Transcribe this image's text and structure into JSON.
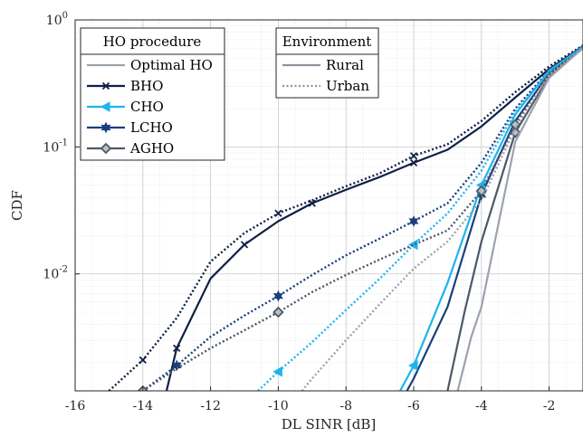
{
  "chart_data": {
    "type": "line",
    "xlabel": "DL SINR [dB]",
    "ylabel": "CDF",
    "xscale": "linear",
    "yscale": "log",
    "xlim": [
      -16,
      -1
    ],
    "ylim": [
      0.0012,
      1
    ],
    "x_ticks": [
      -16,
      -14,
      -12,
      -10,
      -8,
      -6,
      -4,
      -2
    ],
    "x_tick_labels": [
      "-16",
      "-14",
      "-12",
      "-10",
      "-8",
      "-6",
      "-4",
      "-2"
    ],
    "y_ticks": [
      {
        "value": 0.01,
        "base": "10",
        "exp": "-2"
      },
      {
        "value": 0.1,
        "base": "10",
        "exp": "-1"
      },
      {
        "value": 1,
        "base": "10",
        "exp": "0"
      }
    ],
    "grid": true,
    "minor_grid": true,
    "legends": [
      {
        "title": "HO procedure",
        "placement": "top-left",
        "entries": [
          {
            "label": "Optimal HO",
            "color": "#9aa3ad",
            "marker": "none"
          },
          {
            "label": "BHO",
            "color": "#0f1f45",
            "marker": "x"
          },
          {
            "label": "CHO",
            "color": "#1cb4ef",
            "marker": "triangle-left"
          },
          {
            "label": "LCHO",
            "color": "#1a3f7a",
            "marker": "hexagram"
          },
          {
            "label": "AGHO",
            "color": "#4d5866",
            "marker": "diamond"
          }
        ]
      },
      {
        "title": "Environment",
        "placement": "top-center",
        "entries": [
          {
            "label": "Rural",
            "color": "#8c949d",
            "style": "solid"
          },
          {
            "label": "Urban",
            "color": "#8c949d",
            "style": "dotted"
          }
        ]
      }
    ],
    "series": [
      {
        "procedure": "BHO",
        "environment": "Urban",
        "color": "#0f1f45",
        "style": "dotted",
        "marker": "x",
        "points": [
          [
            -15,
            0.0012
          ],
          [
            -14,
            0.0021
          ],
          [
            -13,
            0.0045
          ],
          [
            -12,
            0.0125
          ],
          [
            -11,
            0.021
          ],
          [
            -10,
            0.03
          ],
          [
            -9,
            0.038
          ],
          [
            -8,
            0.049
          ],
          [
            -7,
            0.062
          ],
          [
            -6,
            0.085
          ],
          [
            -5,
            0.105
          ],
          [
            -4,
            0.16
          ],
          [
            -3,
            0.27
          ],
          [
            -2,
            0.43
          ],
          [
            -1,
            0.63
          ]
        ],
        "marker_x": [
          -14,
          -10,
          -6
        ]
      },
      {
        "procedure": "BHO",
        "environment": "Rural",
        "color": "#0f1f45",
        "style": "solid",
        "marker": "x",
        "points": [
          [
            -13.3,
            0.0012
          ],
          [
            -13,
            0.0026
          ],
          [
            -12,
            0.0092
          ],
          [
            -11,
            0.017
          ],
          [
            -10,
            0.026
          ],
          [
            -9,
            0.036
          ],
          [
            -8,
            0.046
          ],
          [
            -7,
            0.058
          ],
          [
            -6,
            0.075
          ],
          [
            -5,
            0.095
          ],
          [
            -4,
            0.145
          ],
          [
            -3,
            0.245
          ],
          [
            -2,
            0.41
          ],
          [
            -1,
            0.62
          ]
        ],
        "marker_x": [
          -13,
          -11,
          -9,
          -6
        ]
      },
      {
        "procedure": "LCHO",
        "environment": "Urban",
        "color": "#1a3f7a",
        "style": "dotted",
        "marker": "hexagram",
        "points": [
          [
            -14,
            0.0012
          ],
          [
            -13,
            0.0019
          ],
          [
            -12,
            0.0032
          ],
          [
            -11,
            0.0047
          ],
          [
            -10,
            0.0067
          ],
          [
            -9,
            0.0098
          ],
          [
            -8,
            0.014
          ],
          [
            -7,
            0.019
          ],
          [
            -6,
            0.026
          ],
          [
            -5,
            0.036
          ],
          [
            -4,
            0.075
          ],
          [
            -3,
            0.2
          ],
          [
            -2,
            0.4
          ],
          [
            -1,
            0.62
          ]
        ],
        "marker_x": [
          -13,
          -10,
          -6
        ]
      },
      {
        "procedure": "LCHO",
        "environment": "Rural",
        "color": "#1a3f7a",
        "style": "solid",
        "marker": "hexagram",
        "points": [
          [
            -6.2,
            0.0012
          ],
          [
            -6,
            0.0015
          ],
          [
            -5,
            0.0055
          ],
          [
            -4,
            0.042
          ],
          [
            -3,
            0.16
          ],
          [
            -2,
            0.38
          ],
          [
            -1,
            0.6
          ]
        ],
        "marker_x": [
          -4
        ]
      },
      {
        "procedure": "CHO",
        "environment": "Urban",
        "color": "#1cb4ef",
        "style": "dotted",
        "marker": "triangle-left",
        "points": [
          [
            -10.6,
            0.0012
          ],
          [
            -10,
            0.0017
          ],
          [
            -9,
            0.0029
          ],
          [
            -8,
            0.0052
          ],
          [
            -7,
            0.0092
          ],
          [
            -6,
            0.017
          ],
          [
            -5,
            0.03
          ],
          [
            -4,
            0.065
          ],
          [
            -3,
            0.19
          ],
          [
            -2,
            0.39
          ],
          [
            -1,
            0.62
          ]
        ],
        "marker_x": [
          -10,
          -6
        ]
      },
      {
        "procedure": "CHO",
        "environment": "Rural",
        "color": "#1cb4ef",
        "style": "solid",
        "marker": "triangle-left",
        "points": [
          [
            -6.4,
            0.0012
          ],
          [
            -6,
            0.0019
          ],
          [
            -5,
            0.0085
          ],
          [
            -4,
            0.05
          ],
          [
            -3,
            0.18
          ],
          [
            -2,
            0.4
          ],
          [
            -1,
            0.61
          ]
        ],
        "marker_x": [
          -6,
          -4
        ]
      },
      {
        "procedure": "AGHO",
        "environment": "Urban",
        "color": "#4d5866",
        "style": "dotted",
        "marker": "diamond",
        "points": [
          [
            -14,
            0.0012
          ],
          [
            -13,
            0.0018
          ],
          [
            -12,
            0.0026
          ],
          [
            -11,
            0.0036
          ],
          [
            -10,
            0.005
          ],
          [
            -9,
            0.0072
          ],
          [
            -8,
            0.0098
          ],
          [
            -7,
            0.013
          ],
          [
            -6,
            0.017
          ],
          [
            -5,
            0.022
          ],
          [
            -4,
            0.045
          ],
          [
            -3,
            0.15
          ],
          [
            -2,
            0.38
          ],
          [
            -1,
            0.6
          ]
        ],
        "marker_x": [
          -14,
          -10,
          -4,
          -3
        ]
      },
      {
        "procedure": "AGHO",
        "environment": "Rural",
        "color": "#4d5866",
        "style": "solid",
        "marker": "diamond",
        "points": [
          [
            -5,
            0.0012
          ],
          [
            -4.5,
            0.005
          ],
          [
            -4,
            0.018
          ],
          [
            -3,
            0.13
          ],
          [
            -2,
            0.36
          ],
          [
            -1,
            0.6
          ]
        ],
        "marker_x": [
          -3
        ]
      },
      {
        "procedure": "Optimal HO",
        "environment": "Urban",
        "color": "#9aa3ad",
        "style": "dotted",
        "marker": "none",
        "points": [
          [
            -9.3,
            0.0012
          ],
          [
            -9,
            0.0015
          ],
          [
            -8,
            0.003
          ],
          [
            -7,
            0.0058
          ],
          [
            -6,
            0.011
          ],
          [
            -5,
            0.018
          ],
          [
            -4,
            0.038
          ],
          [
            -3,
            0.14
          ],
          [
            -2,
            0.37
          ],
          [
            -1,
            0.6
          ]
        ],
        "marker_x": []
      },
      {
        "procedure": "Optimal HO",
        "environment": "Rural",
        "color": "#9aa3ad",
        "style": "solid",
        "marker": "none",
        "points": [
          [
            -4.7,
            0.0012
          ],
          [
            -4.3,
            0.0032
          ],
          [
            -4,
            0.0055
          ],
          [
            -3,
            0.11
          ],
          [
            -2,
            0.35
          ],
          [
            -1,
            0.6
          ]
        ],
        "marker_x": []
      }
    ]
  }
}
